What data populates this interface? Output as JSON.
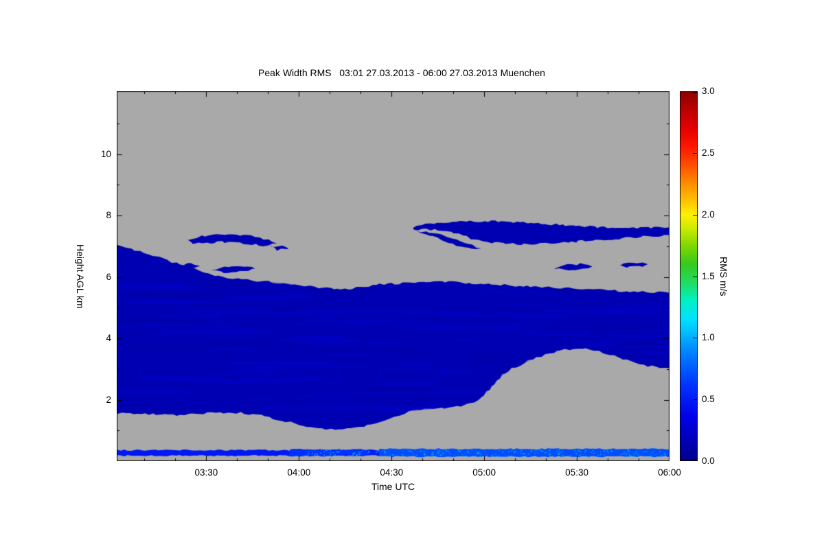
{
  "chart_data": {
    "type": "heatmap",
    "title": "Peak Width RMS   03:01 27.03.2013 - 06:00 27.03.2013 Muenchen",
    "xlabel": "Time UTC",
    "ylabel": "Height AGL km",
    "x_range_minutes": [
      181,
      360
    ],
    "x_ticks": [
      {
        "t": 210,
        "label": "03:30"
      },
      {
        "t": 240,
        "label": "04:00"
      },
      {
        "t": 270,
        "label": "04:30"
      },
      {
        "t": 300,
        "label": "05:00"
      },
      {
        "t": 330,
        "label": "05:30"
      },
      {
        "t": 360,
        "label": "06:00"
      }
    ],
    "x_minor_ticks": [
      190,
      200,
      220,
      230,
      250,
      260,
      280,
      290,
      310,
      320,
      340,
      350
    ],
    "y_range_km": [
      0,
      12.05
    ],
    "y_ticks": [
      {
        "v": 2,
        "label": "2"
      },
      {
        "v": 4,
        "label": "4"
      },
      {
        "v": 6,
        "label": "6"
      },
      {
        "v": 8,
        "label": "8"
      },
      {
        "v": 10,
        "label": "10"
      }
    ],
    "y_minor_ticks": [
      1,
      3,
      5,
      7,
      9,
      11
    ],
    "no_data_color": "#a9a9a9",
    "axis_color": "#000000",
    "colorbar": {
      "label": "RMS m/s",
      "range": [
        0,
        3
      ],
      "ticks": [
        {
          "v": 0.0,
          "label": "0.0"
        },
        {
          "v": 0.5,
          "label": "0.5"
        },
        {
          "v": 1.0,
          "label": "1.0"
        },
        {
          "v": 1.5,
          "label": "1.5"
        },
        {
          "v": 2.0,
          "label": "2.0"
        },
        {
          "v": 2.5,
          "label": "2.5"
        },
        {
          "v": 3.0,
          "label": "3.0"
        }
      ],
      "stops": [
        [
          0.0,
          "#00008C"
        ],
        [
          0.35,
          "#0000E8"
        ],
        [
          0.6,
          "#0030FF"
        ],
        [
          0.85,
          "#0078FF"
        ],
        [
          1.0,
          "#00AEFF"
        ],
        [
          1.15,
          "#00E0FF"
        ],
        [
          1.3,
          "#00F0C8"
        ],
        [
          1.45,
          "#20DC60"
        ],
        [
          1.6,
          "#38C820"
        ],
        [
          1.75,
          "#80D800"
        ],
        [
          1.9,
          "#D0EC00"
        ],
        [
          2.0,
          "#FFF000"
        ],
        [
          2.1,
          "#FFC800"
        ],
        [
          2.25,
          "#FF9000"
        ],
        [
          2.4,
          "#FF5000"
        ],
        [
          2.55,
          "#FF1800"
        ],
        [
          2.7,
          "#E40000"
        ],
        [
          2.85,
          "#BC0000"
        ],
        [
          3.0,
          "#8C0000"
        ]
      ]
    },
    "regions": [
      {
        "name": "main-cloud-mass",
        "value": 0.15,
        "points": [
          [
            179,
            7.1
          ],
          [
            184,
            6.97
          ],
          [
            187,
            6.88
          ],
          [
            190,
            6.78
          ],
          [
            193,
            6.68
          ],
          [
            196,
            6.58
          ],
          [
            199,
            6.48
          ],
          [
            202,
            6.4
          ],
          [
            205,
            6.3
          ],
          [
            208,
            6.2
          ],
          [
            211,
            6.1
          ],
          [
            214,
            6.02
          ],
          [
            217,
            5.97
          ],
          [
            220,
            5.93
          ],
          [
            225,
            5.88
          ],
          [
            230,
            5.85
          ],
          [
            235,
            5.8
          ],
          [
            240,
            5.74
          ],
          [
            245,
            5.67
          ],
          [
            250,
            5.62
          ],
          [
            255,
            5.6
          ],
          [
            260,
            5.67
          ],
          [
            265,
            5.74
          ],
          [
            270,
            5.78
          ],
          [
            275,
            5.81
          ],
          [
            280,
            5.83
          ],
          [
            285,
            5.85
          ],
          [
            290,
            5.83
          ],
          [
            295,
            5.8
          ],
          [
            300,
            5.77
          ],
          [
            305,
            5.74
          ],
          [
            310,
            5.72
          ],
          [
            315,
            5.7
          ],
          [
            320,
            5.67
          ],
          [
            325,
            5.64
          ],
          [
            330,
            5.62
          ],
          [
            335,
            5.6
          ],
          [
            340,
            5.57
          ],
          [
            345,
            5.54
          ],
          [
            350,
            5.52
          ],
          [
            355,
            5.5
          ],
          [
            362,
            5.5
          ],
          [
            362,
            3.05
          ],
          [
            357,
            3.06
          ],
          [
            353,
            3.1
          ],
          [
            349,
            3.2
          ],
          [
            345,
            3.33
          ],
          [
            341,
            3.47
          ],
          [
            337,
            3.58
          ],
          [
            333,
            3.66
          ],
          [
            329,
            3.67
          ],
          [
            325,
            3.6
          ],
          [
            321,
            3.5
          ],
          [
            317,
            3.37
          ],
          [
            313,
            3.2
          ],
          [
            309,
            3.02
          ],
          [
            306,
            2.8
          ],
          [
            303,
            2.5
          ],
          [
            300,
            2.15
          ],
          [
            297,
            1.92
          ],
          [
            294,
            1.83
          ],
          [
            290,
            1.78
          ],
          [
            286,
            1.73
          ],
          [
            282,
            1.69
          ],
          [
            278,
            1.65
          ],
          [
            274,
            1.56
          ],
          [
            271,
            1.45
          ],
          [
            268,
            1.33
          ],
          [
            265,
            1.24
          ],
          [
            261,
            1.15
          ],
          [
            257,
            1.08
          ],
          [
            253,
            1.05
          ],
          [
            249,
            1.06
          ],
          [
            245,
            1.1
          ],
          [
            241,
            1.17
          ],
          [
            237,
            1.26
          ],
          [
            233,
            1.36
          ],
          [
            229,
            1.46
          ],
          [
            225,
            1.53
          ],
          [
            221,
            1.57
          ],
          [
            217,
            1.58
          ],
          [
            213,
            1.58
          ],
          [
            209,
            1.55
          ],
          [
            204,
            1.52
          ],
          [
            199,
            1.5
          ],
          [
            194,
            1.52
          ],
          [
            189,
            1.55
          ],
          [
            184,
            1.56
          ],
          [
            179,
            1.56
          ]
        ]
      },
      {
        "name": "upper-streak-left",
        "value": 0.15,
        "points": [
          [
            204,
            7.2
          ],
          [
            207,
            7.3
          ],
          [
            211,
            7.37
          ],
          [
            216,
            7.4
          ],
          [
            221,
            7.38
          ],
          [
            226,
            7.32
          ],
          [
            230,
            7.22
          ],
          [
            233,
            7.1
          ],
          [
            230,
            7.02
          ],
          [
            226,
            7.05
          ],
          [
            221,
            7.12
          ],
          [
            215,
            7.15
          ],
          [
            210,
            7.1
          ],
          [
            206,
            7.1
          ]
        ]
      },
      {
        "name": "upper-streak-left-tail",
        "value": 0.15,
        "points": [
          [
            231,
            7.0
          ],
          [
            235,
            7.03
          ],
          [
            237,
            6.93
          ],
          [
            233,
            6.88
          ]
        ]
      },
      {
        "name": "mid-blob-left-1",
        "value": 0.15,
        "points": [
          [
            198,
            6.3
          ],
          [
            201,
            6.4
          ],
          [
            205,
            6.44
          ],
          [
            208,
            6.37
          ],
          [
            205,
            6.27
          ],
          [
            200,
            6.24
          ]
        ]
      },
      {
        "name": "mid-blob-left-2",
        "value": 0.15,
        "points": [
          [
            212,
            6.22
          ],
          [
            216,
            6.33
          ],
          [
            221,
            6.37
          ],
          [
            226,
            6.3
          ],
          [
            222,
            6.19
          ],
          [
            216,
            6.16
          ]
        ]
      },
      {
        "name": "upper-streak-right",
        "value": 0.15,
        "points": [
          [
            277,
            7.6
          ],
          [
            281,
            7.7
          ],
          [
            286,
            7.77
          ],
          [
            292,
            7.81
          ],
          [
            299,
            7.82
          ],
          [
            307,
            7.8
          ],
          [
            315,
            7.76
          ],
          [
            323,
            7.71
          ],
          [
            331,
            7.66
          ],
          [
            339,
            7.62
          ],
          [
            347,
            7.6
          ],
          [
            354,
            7.6
          ],
          [
            362,
            7.62
          ],
          [
            362,
            7.38
          ],
          [
            354,
            7.33
          ],
          [
            347,
            7.28
          ],
          [
            340,
            7.23
          ],
          [
            333,
            7.18
          ],
          [
            326,
            7.13
          ],
          [
            319,
            7.09
          ],
          [
            312,
            7.07
          ],
          [
            306,
            7.09
          ],
          [
            301,
            7.14
          ],
          [
            297,
            7.22
          ],
          [
            293,
            7.35
          ],
          [
            289,
            7.46
          ],
          [
            284,
            7.53
          ],
          [
            280,
            7.55
          ],
          [
            277,
            7.55
          ]
        ]
      },
      {
        "name": "upper-streak-right-wisp",
        "value": 0.15,
        "points": [
          [
            281,
            7.5
          ],
          [
            286,
            7.38
          ],
          [
            291,
            7.2
          ],
          [
            296,
            7.02
          ],
          [
            299,
            6.93
          ],
          [
            296,
            6.9
          ],
          [
            291,
            7.03
          ],
          [
            286,
            7.22
          ],
          [
            281,
            7.4
          ],
          [
            278,
            7.48
          ]
        ]
      },
      {
        "name": "mid-blob-right-1",
        "value": 0.15,
        "points": [
          [
            323,
            6.28
          ],
          [
            326,
            6.38
          ],
          [
            331,
            6.42
          ],
          [
            335,
            6.36
          ],
          [
            332,
            6.25
          ],
          [
            326,
            6.22
          ]
        ]
      },
      {
        "name": "mid-blob-right-2",
        "value": 0.15,
        "points": [
          [
            344,
            6.37
          ],
          [
            347,
            6.45
          ],
          [
            351,
            6.47
          ],
          [
            353,
            6.41
          ],
          [
            350,
            6.33
          ],
          [
            346,
            6.32
          ]
        ]
      },
      {
        "name": "surface-line-base",
        "value": 0.48,
        "points": [
          [
            179,
            0.36
          ],
          [
            362,
            0.36
          ],
          [
            362,
            0.18
          ],
          [
            179,
            0.18
          ]
        ]
      },
      {
        "name": "surface-line-mid",
        "value": 0.6,
        "points": [
          [
            237,
            0.38
          ],
          [
            263,
            0.38
          ],
          [
            263,
            0.17
          ],
          [
            237,
            0.17
          ]
        ]
      },
      {
        "name": "surface-line-bright",
        "value": 0.7,
        "points": [
          [
            266,
            0.4
          ],
          [
            362,
            0.4
          ],
          [
            362,
            0.15
          ],
          [
            266,
            0.15
          ]
        ]
      }
    ],
    "texture": {
      "mottle_count": 150,
      "speckle_count": 260,
      "mottle_light_value": 0.3,
      "mottle_dark_value": 0.05,
      "speckle_value_min": 0.8,
      "speckle_value_span": 0.5
    }
  }
}
